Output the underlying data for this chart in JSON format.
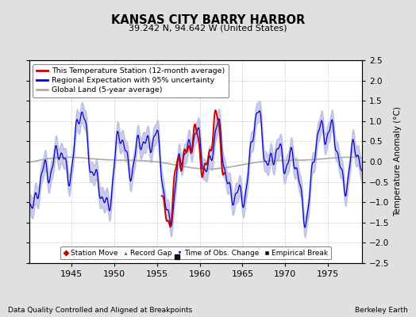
{
  "title": "KANSAS CITY BARRY HARBOR",
  "subtitle": "39.242 N, 94.642 W (United States)",
  "xlabel_left": "Data Quality Controlled and Aligned at Breakpoints",
  "xlabel_right": "Berkeley Earth",
  "ylabel": "Temperature Anomaly (°C)",
  "xlim": [
    1940,
    1979
  ],
  "ylim": [
    -2.5,
    2.5
  ],
  "yticks": [
    -2.5,
    -2,
    -1.5,
    -1,
    -0.5,
    0,
    0.5,
    1,
    1.5,
    2,
    2.5
  ],
  "xticks": [
    1945,
    1950,
    1955,
    1960,
    1965,
    1970,
    1975
  ],
  "bg_color": "#e0e0e0",
  "plot_bg_color": "#ffffff",
  "grid_color": "#cccccc",
  "blue_line_color": "#0000cc",
  "blue_fill_color": "#aaaadd",
  "red_line_color": "#cc0000",
  "gray_line_color": "#aaaaaa",
  "marker_colors": {
    "station_move": "#cc0000",
    "record_gap": "#008800",
    "time_obs": "#0000cc",
    "empirical_break": "#111111"
  },
  "empirical_break_year": 1957.3,
  "red_start": 1955.5,
  "red_end": 1963.0,
  "legend_items": [
    "This Temperature Station (12-month average)",
    "Regional Expectation with 95% uncertainty",
    "Global Land (5-year average)"
  ]
}
